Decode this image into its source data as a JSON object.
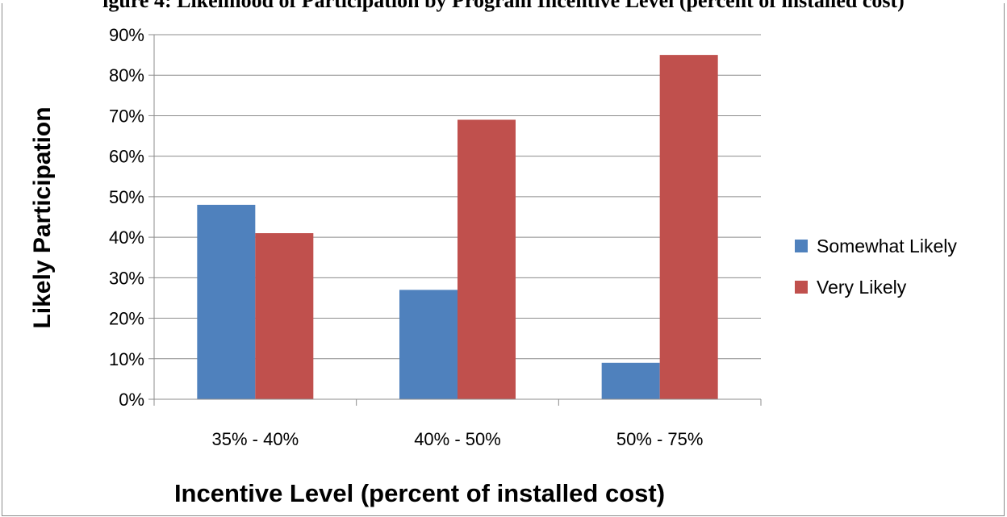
{
  "chart_data": {
    "type": "bar",
    "title": "",
    "title_partial": "igure 4: Likelihood of Participation by Program Incentive Level (percent of installed cost)",
    "xlabel": "Incentive Level (percent of installed cost)",
    "ylabel": "Likely Participation",
    "categories": [
      "35% - 40%",
      "40% - 50%",
      "50% - 75%"
    ],
    "series": [
      {
        "name": "Somewhat Likely",
        "values": [
          0.48,
          0.27,
          0.09
        ],
        "color": "#4f81bd"
      },
      {
        "name": "Very Likely",
        "values": [
          0.41,
          0.69,
          0.85
        ],
        "color": "#c0504d"
      }
    ],
    "ylim": [
      0,
      0.9
    ],
    "yticks": [
      0,
      0.1,
      0.2,
      0.3,
      0.4,
      0.5,
      0.6,
      0.7,
      0.8,
      0.9
    ],
    "ytick_labels": [
      "0%",
      "10%",
      "20%",
      "30%",
      "40%",
      "50%",
      "60%",
      "70%",
      "80%",
      "90%"
    ],
    "grid": true,
    "legend_position": "right"
  }
}
